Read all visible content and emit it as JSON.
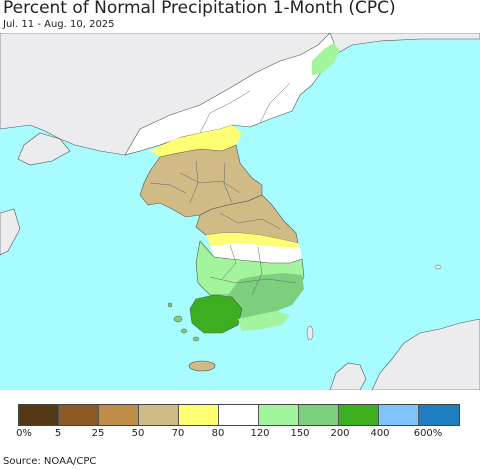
{
  "title": "Percent of Normal Precipitation 1-Month (CPC)",
  "subtitle": "Jul. 11 - Aug. 10, 2025",
  "source": "Source: NOAA/CPC",
  "colors": {
    "ocean": "#a6fcff",
    "foreign_land": "#ecebee",
    "border": "#555555"
  },
  "legend": {
    "swatches": [
      "#543a14",
      "#8c5a20",
      "#c08d48",
      "#d0ba86",
      "#ffff74",
      "#ffffff",
      "#a2f59c",
      "#7ccf7c",
      "#3baf1f",
      "#80c4ff",
      "#1f7ec2"
    ],
    "ticks": [
      "0%",
      "5",
      "25",
      "50",
      "70",
      "80",
      "120",
      "150",
      "200",
      "400",
      "600%"
    ]
  }
}
